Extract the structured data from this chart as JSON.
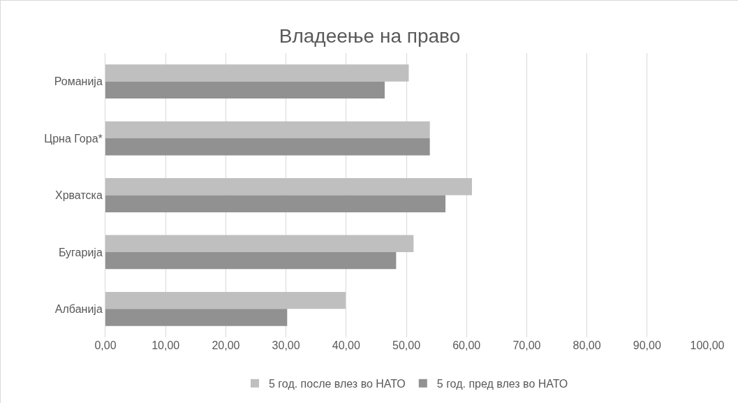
{
  "chart_data": {
    "type": "bar",
    "orientation": "horizontal",
    "title": "Владеење на право",
    "categories": [
      "Романија",
      "Црна Гора*",
      "Хрватска",
      "Бугарија",
      "Албанија"
    ],
    "series": [
      {
        "name": "5 год. после влез во НАТО",
        "color": "#bfbfbf",
        "values": [
          50.4,
          53.9,
          60.9,
          51.2,
          39.9
        ]
      },
      {
        "name": "5 год. пред влез во НАТО",
        "color": "#919191",
        "values": [
          46.4,
          53.9,
          56.5,
          48.3,
          30.2
        ]
      }
    ],
    "xlim": [
      0,
      100
    ],
    "xticks": [
      {
        "value": 0,
        "label": "0,00"
      },
      {
        "value": 10,
        "label": "10,00"
      },
      {
        "value": 20,
        "label": "20,00"
      },
      {
        "value": 30,
        "label": "30,00"
      },
      {
        "value": 40,
        "label": "40,00"
      },
      {
        "value": 50,
        "label": "50,00"
      },
      {
        "value": 60,
        "label": "60,00"
      },
      {
        "value": 70,
        "label": "70,00"
      },
      {
        "value": 80,
        "label": "80,00"
      },
      {
        "value": 90,
        "label": "90,00"
      },
      {
        "value": 100,
        "label": "100,00"
      }
    ],
    "grid": "x",
    "legend": "bottom"
  }
}
